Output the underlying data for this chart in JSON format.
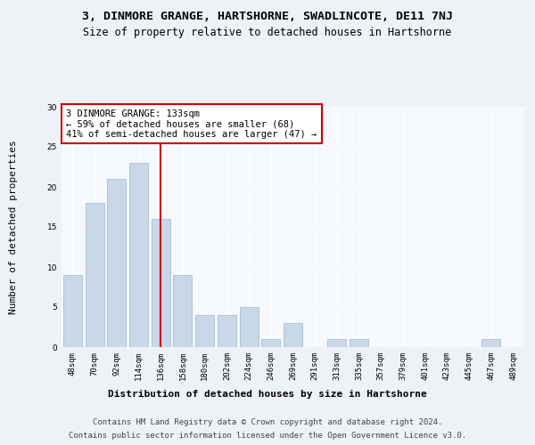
{
  "title_line1": "3, DINMORE GRANGE, HARTSHORNE, SWADLINCOTE, DE11 7NJ",
  "title_line2": "Size of property relative to detached houses in Hartshorne",
  "xlabel": "Distribution of detached houses by size in Hartshorne",
  "ylabel": "Number of detached properties",
  "categories": [
    "48sqm",
    "70sqm",
    "92sqm",
    "114sqm",
    "136sqm",
    "158sqm",
    "180sqm",
    "202sqm",
    "224sqm",
    "246sqm",
    "269sqm",
    "291sqm",
    "313sqm",
    "335sqm",
    "357sqm",
    "379sqm",
    "401sqm",
    "423sqm",
    "445sqm",
    "467sqm",
    "489sqm"
  ],
  "values": [
    9,
    18,
    21,
    23,
    16,
    9,
    4,
    4,
    5,
    1,
    3,
    0,
    1,
    1,
    0,
    0,
    0,
    0,
    0,
    1,
    0
  ],
  "bar_color": "#c8d8e8",
  "bar_edge_color": "#a8c0d0",
  "vline_x_index": 4,
  "vline_color": "#cc0000",
  "annotation_text": "3 DINMORE GRANGE: 133sqm\n← 59% of detached houses are smaller (68)\n41% of semi-detached houses are larger (47) →",
  "annotation_box_color": "#ffffff",
  "annotation_box_edge": "#cc0000",
  "ylim": [
    0,
    30
  ],
  "yticks": [
    0,
    5,
    10,
    15,
    20,
    25,
    30
  ],
  "footer_line1": "Contains HM Land Registry data © Crown copyright and database right 2024.",
  "footer_line2": "Contains public sector information licensed under the Open Government Licence v3.0.",
  "bg_color": "#eef2f7",
  "plot_bg_color": "#f5f8fc",
  "title_fontsize": 9.5,
  "subtitle_fontsize": 8.5,
  "axis_label_fontsize": 8,
  "tick_fontsize": 6.5,
  "annotation_fontsize": 7.5,
  "footer_fontsize": 6.5
}
